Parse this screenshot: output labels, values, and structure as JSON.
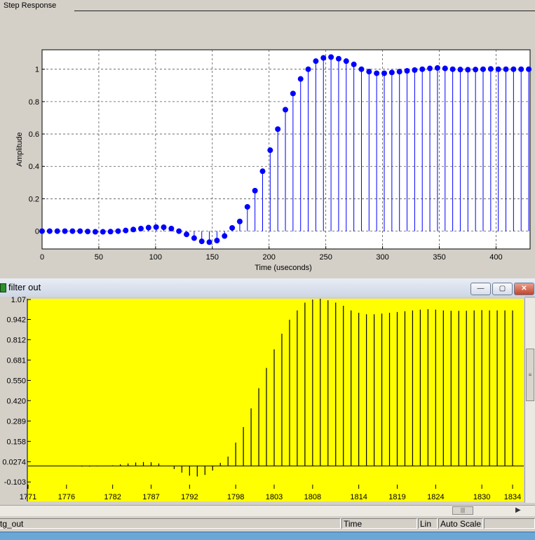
{
  "top_panel": {
    "tab_label": "Step Response"
  },
  "filter_window": {
    "title": "filter out",
    "buttons": {
      "minimize": "—",
      "maximize": "▢",
      "close": "✕"
    }
  },
  "status_bar": {
    "signal": "tg_out",
    "domain": "Time",
    "scale": "Lin",
    "mode": "Auto Scale"
  },
  "chart_data": [
    {
      "type": "stem",
      "title": "",
      "xlabel": "Time (useconds)",
      "ylabel": "Amplitude",
      "xlim": [
        0,
        430
      ],
      "ylim": [
        -0.11,
        1.12
      ],
      "xticks": [
        0,
        50,
        100,
        150,
        200,
        250,
        300,
        350,
        400
      ],
      "yticks": [
        0,
        0.2,
        0.4,
        0.6,
        0.8,
        1
      ],
      "grid": true,
      "marker_color": "#0000ff",
      "x": [
        0,
        6.7,
        13.4,
        20.1,
        26.8,
        33.5,
        40.2,
        46.9,
        53.6,
        60.3,
        67,
        73.7,
        80.4,
        87.1,
        93.8,
        100.5,
        107.2,
        113.9,
        120.6,
        127.3,
        134,
        140.7,
        147.4,
        154.1,
        160.8,
        167.5,
        174.2,
        180.9,
        187.6,
        194.3,
        201,
        207.7,
        214.4,
        221.1,
        227.8,
        234.5,
        241.2,
        247.9,
        254.6,
        261.3,
        268,
        274.7,
        281.4,
        288.1,
        294.8,
        301.5,
        308.2,
        314.9,
        321.6,
        328.3,
        335,
        341.7,
        348.4,
        355.1,
        361.8,
        368.5,
        375.2,
        381.9,
        388.6,
        395.3,
        402,
        408.7,
        415.4,
        422.1,
        428.8
      ],
      "y": [
        0,
        0,
        0,
        0,
        0,
        0,
        -0.002,
        -0.004,
        -0.004,
        -0.003,
        0,
        0.004,
        0.01,
        0.016,
        0.022,
        0.025,
        0.024,
        0.016,
        0,
        -0.02,
        -0.043,
        -0.063,
        -0.068,
        -0.058,
        -0.03,
        0.02,
        0.06,
        0.15,
        0.25,
        0.37,
        0.5,
        0.63,
        0.75,
        0.85,
        0.94,
        1.0,
        1.05,
        1.07,
        1.075,
        1.065,
        1.05,
        1.03,
        1.0,
        0.985,
        0.975,
        0.975,
        0.98,
        0.985,
        0.99,
        0.995,
        1.0,
        1.005,
        1.008,
        1.005,
        1.0,
        0.998,
        0.997,
        0.998,
        1.0,
        1.002,
        1.0,
        1.0,
        1.0,
        1.0,
        1.0
      ]
    },
    {
      "type": "stem",
      "title": "",
      "xlim": [
        1771,
        1835
      ],
      "ylim": [
        -0.12,
        1.075
      ],
      "xticks": [
        1771,
        1776,
        1782,
        1787,
        1792,
        1798,
        1803,
        1808,
        1814,
        1819,
        1824,
        1830,
        1834
      ],
      "yticks": [
        1.07,
        0.942,
        0.812,
        0.681,
        0.55,
        0.42,
        0.289,
        0.158,
        0.0274,
        -0.103
      ],
      "ytick_labels": [
        "1.07",
        "0.942",
        "0.812",
        "0.681",
        "0.550",
        "0.420",
        "0.289",
        "0.158",
        "0.0274",
        "-0.103"
      ],
      "background_color": "#ffff00",
      "line_color": "#000000",
      "x": [
        1771,
        1772,
        1773,
        1774,
        1775,
        1776,
        1777,
        1778,
        1779,
        1780,
        1781,
        1782,
        1783,
        1784,
        1785,
        1786,
        1787,
        1788,
        1789,
        1790,
        1791,
        1792,
        1793,
        1794,
        1795,
        1796,
        1797,
        1798,
        1799,
        1800,
        1801,
        1802,
        1803,
        1804,
        1805,
        1806,
        1807,
        1808,
        1809,
        1810,
        1811,
        1812,
        1813,
        1814,
        1815,
        1816,
        1817,
        1818,
        1819,
        1820,
        1821,
        1822,
        1823,
        1824,
        1825,
        1826,
        1827,
        1828,
        1829,
        1830,
        1831,
        1832,
        1833,
        1834
      ],
      "y": [
        0,
        0,
        0,
        0,
        0,
        0,
        -0.002,
        -0.004,
        -0.004,
        -0.003,
        0,
        0.004,
        0.01,
        0.016,
        0.022,
        0.025,
        0.024,
        0.016,
        0,
        -0.02,
        -0.043,
        -0.063,
        -0.068,
        -0.058,
        -0.03,
        0.02,
        0.06,
        0.15,
        0.25,
        0.37,
        0.5,
        0.63,
        0.75,
        0.85,
        0.94,
        1.0,
        1.05,
        1.07,
        1.075,
        1.065,
        1.05,
        1.03,
        1.0,
        0.985,
        0.975,
        0.975,
        0.98,
        0.985,
        0.99,
        0.995,
        1.0,
        1.005,
        1.008,
        1.005,
        1.0,
        0.998,
        0.997,
        0.998,
        1.0,
        1.002,
        1.0,
        1.0,
        1.0,
        1.0
      ]
    }
  ]
}
